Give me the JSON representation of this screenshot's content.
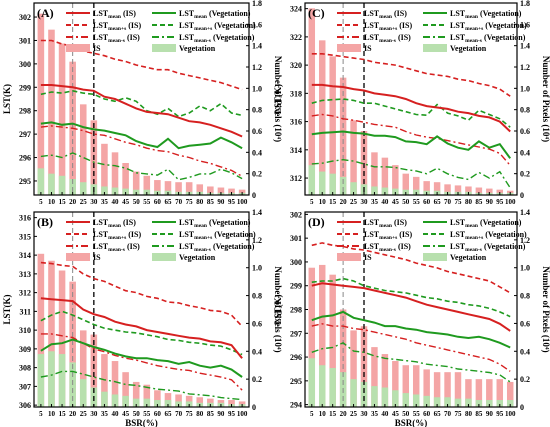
{
  "figure": {
    "colors": {
      "is_line": "#d62020",
      "veg_line": "#1f9a1f",
      "is_bar": "#f4a5a5",
      "veg_bar": "#b8e0ae",
      "ref_line": "#000000",
      "ref_line_light": "#888888"
    },
    "legend_labels": {
      "lst_mean_is": "LSTmean (IS)",
      "lst_mean_veg": "LSTmean (Vegetation)",
      "lst_plus_is": "LSTmean+s (IS)",
      "lst_plus_veg": "LSTmean+s (Vegetation)",
      "lst_minus_is": "LSTmean-s (IS)",
      "lst_minus_veg": "LSTmean-s (Vegetation)",
      "is": "IS",
      "veg": "Vegetation"
    },
    "legend_sub": {
      "base": "LST",
      "mean": "mean",
      "plus": "mean+s",
      "minus": "mean-s",
      "is_suffix": " (IS)",
      "veg_suffix": " (Vegetation)"
    }
  },
  "chart_data": [
    {
      "panel": "(A)",
      "type": "line+bar",
      "xlabel": "BSR(%)",
      "ylabel": "LST(K)",
      "y2label": "Number of Pixels (10⁴)",
      "x": [
        5,
        10,
        15,
        20,
        25,
        30,
        35,
        40,
        45,
        50,
        55,
        60,
        65,
        70,
        75,
        80,
        85,
        90,
        95,
        100
      ],
      "ylim": [
        294.4,
        302.6
      ],
      "yticks": [
        295,
        296,
        297,
        298,
        299,
        300,
        301,
        302
      ],
      "y2lim": [
        0,
        1.8
      ],
      "y2ticks": [
        0,
        0.2,
        0.4,
        0.6,
        0.8,
        1.0,
        1.2,
        1.4,
        1.6,
        1.8
      ],
      "vlines": [
        20,
        30
      ],
      "is_mean": [
        299.1,
        299.1,
        299.05,
        299.0,
        298.9,
        298.85,
        298.6,
        298.5,
        298.3,
        298.1,
        297.95,
        297.9,
        297.85,
        297.7,
        297.55,
        297.5,
        297.4,
        297.25,
        297.1,
        296.9
      ],
      "is_plus": [
        301.0,
        301.0,
        300.85,
        300.75,
        300.55,
        300.45,
        300.35,
        300.2,
        300.1,
        299.95,
        299.85,
        299.75,
        299.75,
        299.6,
        299.5,
        299.4,
        299.3,
        299.2,
        299.05,
        298.9
      ],
      "is_minus": [
        297.3,
        297.35,
        297.3,
        297.25,
        297.15,
        297.0,
        296.95,
        296.8,
        296.65,
        296.55,
        296.4,
        296.3,
        296.25,
        296.1,
        296.0,
        295.85,
        295.75,
        295.6,
        295.45,
        295.2
      ],
      "veg_mean": [
        297.45,
        297.5,
        297.4,
        297.45,
        297.3,
        297.2,
        297.15,
        297.05,
        296.95,
        296.7,
        296.55,
        296.45,
        296.8,
        296.4,
        296.5,
        296.55,
        296.6,
        296.85,
        296.65,
        296.4
      ],
      "veg_plus": [
        298.7,
        298.8,
        298.75,
        298.85,
        298.75,
        298.7,
        298.5,
        298.4,
        298.55,
        298.4,
        298.0,
        297.85,
        298.1,
        297.75,
        297.9,
        298.2,
        298.0,
        298.3,
        297.9,
        297.8
      ],
      "veg_minus": [
        296.05,
        296.1,
        296.0,
        296.2,
        296.0,
        295.8,
        295.7,
        295.65,
        295.55,
        295.35,
        295.3,
        295.25,
        295.5,
        295.05,
        295.15,
        295.3,
        295.3,
        295.5,
        295.35,
        295.1
      ],
      "is_count": [
        1.7,
        1.55,
        1.42,
        1.25,
        0.85,
        0.7,
        0.48,
        0.4,
        0.3,
        0.22,
        0.18,
        0.14,
        0.13,
        0.12,
        0.12,
        0.1,
        0.08,
        0.07,
        0.06,
        0.05
      ],
      "veg_count": [
        0.25,
        0.2,
        0.18,
        0.15,
        0.12,
        0.1,
        0.08,
        0.07,
        0.06,
        0.05,
        0.05,
        0.04,
        0.04,
        0.03,
        0.03,
        0.03,
        0.02,
        0.02,
        0.02,
        0.02
      ]
    },
    {
      "panel": "(B)",
      "type": "line+bar",
      "xlabel": "BSR(%)",
      "ylabel": "LST(K)",
      "y2label": "Number of Pixels (10⁴)",
      "x": [
        5,
        10,
        15,
        20,
        25,
        30,
        35,
        40,
        45,
        50,
        55,
        60,
        65,
        70,
        75,
        80,
        85,
        90,
        95,
        100
      ],
      "ylim": [
        305.9,
        316.3
      ],
      "yticks": [
        306,
        307,
        308,
        309,
        310,
        311,
        312,
        313,
        314,
        315,
        316
      ],
      "y2lim": [
        0,
        1.4
      ],
      "y2ticks": [
        0,
        0.2,
        0.4,
        0.6,
        0.8,
        1.0,
        1.2,
        1.4
      ],
      "vlines": [
        20,
        30
      ],
      "is_mean": [
        311.7,
        311.65,
        311.6,
        311.55,
        311.1,
        310.85,
        310.7,
        310.45,
        310.3,
        310.2,
        310.0,
        309.9,
        309.8,
        309.7,
        309.6,
        309.55,
        309.4,
        309.35,
        309.2,
        308.5
      ],
      "is_plus": [
        313.6,
        313.55,
        313.45,
        313.4,
        313.0,
        312.75,
        312.6,
        312.35,
        312.1,
        312.0,
        311.8,
        311.7,
        311.5,
        311.45,
        311.3,
        311.2,
        311.05,
        311.0,
        310.8,
        310.2
      ],
      "is_minus": [
        309.8,
        309.8,
        309.7,
        309.6,
        309.3,
        309.0,
        308.85,
        308.65,
        308.5,
        308.4,
        308.25,
        308.1,
        308.0,
        307.9,
        307.85,
        307.7,
        307.6,
        307.5,
        307.35,
        306.8
      ],
      "veg_mean": [
        308.9,
        309.25,
        309.3,
        309.5,
        309.3,
        309.1,
        308.95,
        308.75,
        308.6,
        308.5,
        308.5,
        308.4,
        308.35,
        308.2,
        308.3,
        308.1,
        308.0,
        308.1,
        307.9,
        307.5
      ],
      "veg_plus": [
        310.5,
        310.8,
        311.0,
        310.8,
        310.55,
        310.3,
        310.1,
        310.0,
        309.9,
        309.85,
        309.75,
        309.65,
        309.5,
        309.45,
        309.35,
        309.3,
        309.2,
        309.15,
        308.95,
        308.7
      ],
      "veg_minus": [
        307.5,
        307.6,
        307.8,
        307.8,
        307.65,
        307.5,
        307.35,
        307.25,
        307.1,
        307.05,
        306.95,
        306.85,
        306.8,
        306.75,
        306.6,
        306.55,
        306.5,
        306.4,
        306.35,
        306.3
      ],
      "is_count": [
        1.1,
        1.05,
        0.98,
        0.9,
        0.55,
        0.52,
        0.38,
        0.33,
        0.25,
        0.18,
        0.16,
        0.12,
        0.1,
        0.09,
        0.08,
        0.07,
        0.06,
        0.05,
        0.05,
        0.04
      ],
      "veg_count": [
        0.38,
        0.4,
        0.38,
        0.32,
        0.2,
        0.14,
        0.11,
        0.09,
        0.08,
        0.06,
        0.06,
        0.05,
        0.05,
        0.04,
        0.04,
        0.03,
        0.03,
        0.03,
        0.02,
        0.02
      ]
    },
    {
      "panel": "(C)",
      "type": "line+bar",
      "xlabel": "BSR(%)",
      "ylabel": "LST(K)",
      "y2label": "Number of Pixels (10⁴)",
      "x": [
        5,
        10,
        15,
        20,
        25,
        30,
        35,
        40,
        45,
        50,
        55,
        60,
        65,
        70,
        75,
        80,
        85,
        90,
        95,
        100
      ],
      "ylim": [
        310.8,
        324.4
      ],
      "yticks": [
        312,
        314,
        316,
        318,
        320,
        322,
        324
      ],
      "y2lim": [
        0,
        1.8
      ],
      "y2ticks": [
        0,
        0.2,
        0.4,
        0.6,
        0.8,
        1.0,
        1.2,
        1.4,
        1.6,
        1.8
      ],
      "vlines": [
        20,
        30
      ],
      "is_mean": [
        318.6,
        318.6,
        318.5,
        318.45,
        318.3,
        318.2,
        318.0,
        317.9,
        317.8,
        317.6,
        317.3,
        317.1,
        317.0,
        316.9,
        316.7,
        316.6,
        316.4,
        316.3,
        316.0,
        315.3
      ],
      "is_plus": [
        320.8,
        320.8,
        320.7,
        320.6,
        320.5,
        320.4,
        320.2,
        320.1,
        320.0,
        319.8,
        319.6,
        319.4,
        319.3,
        319.2,
        319.0,
        318.9,
        318.7,
        318.55,
        318.3,
        317.8
      ],
      "is_minus": [
        316.4,
        316.5,
        316.4,
        316.2,
        316.1,
        315.95,
        315.8,
        315.7,
        315.6,
        315.3,
        315.05,
        314.9,
        314.8,
        314.65,
        314.5,
        314.35,
        314.2,
        314.05,
        313.75,
        312.9
      ],
      "veg_mean": [
        315.1,
        315.2,
        315.25,
        315.3,
        315.2,
        315.15,
        315.0,
        315.0,
        314.9,
        314.6,
        314.55,
        314.4,
        314.95,
        314.45,
        314.15,
        314.0,
        314.6,
        314.15,
        314.4,
        313.4
      ],
      "veg_plus": [
        317.3,
        317.5,
        317.55,
        317.6,
        317.5,
        317.3,
        317.3,
        317.1,
        316.9,
        316.7,
        316.5,
        316.45,
        317.2,
        316.6,
        316.4,
        316.1,
        316.8,
        316.5,
        316.2,
        315.6
      ],
      "veg_minus": [
        313.0,
        313.05,
        313.2,
        313.3,
        313.2,
        313.0,
        312.8,
        312.8,
        312.75,
        312.6,
        312.5,
        312.3,
        312.7,
        312.3,
        312.05,
        311.9,
        312.4,
        312.0,
        312.45,
        311.3
      ],
      "is_count": [
        1.75,
        1.45,
        1.3,
        1.1,
        0.7,
        0.6,
        0.4,
        0.35,
        0.28,
        0.2,
        0.17,
        0.13,
        0.12,
        0.1,
        0.09,
        0.08,
        0.07,
        0.06,
        0.05,
        0.04
      ],
      "veg_count": [
        0.28,
        0.22,
        0.2,
        0.17,
        0.12,
        0.1,
        0.08,
        0.07,
        0.06,
        0.05,
        0.05,
        0.04,
        0.04,
        0.03,
        0.03,
        0.03,
        0.02,
        0.02,
        0.02,
        0.02
      ]
    },
    {
      "panel": "(D)",
      "type": "line+bar",
      "xlabel": "BSR(%)",
      "ylabel": "LST(K)",
      "y2label": "Number of Pixels (10⁴)",
      "x": [
        5,
        10,
        15,
        20,
        25,
        30,
        35,
        40,
        45,
        50,
        55,
        60,
        65,
        70,
        75,
        80,
        85,
        90,
        95,
        100
      ],
      "ylim": [
        293.9,
        302.1
      ],
      "yticks": [
        294,
        295,
        296,
        297,
        298,
        299,
        300,
        301,
        302
      ],
      "y2lim": [
        0,
        1.4
      ],
      "y2ticks": [
        0,
        0.2,
        0.4,
        0.6,
        0.8,
        1.0,
        1.2,
        1.4
      ],
      "vlines": [
        20,
        30
      ],
      "is_mean": [
        299.0,
        299.1,
        299.05,
        299.0,
        298.95,
        298.9,
        298.8,
        298.7,
        298.6,
        298.5,
        298.35,
        298.2,
        298.1,
        298.0,
        297.9,
        297.8,
        297.7,
        297.6,
        297.4,
        297.1
      ],
      "is_plus": [
        300.7,
        300.8,
        300.7,
        300.65,
        300.55,
        300.5,
        300.4,
        300.3,
        300.2,
        300.1,
        299.95,
        299.85,
        299.75,
        299.6,
        299.5,
        299.4,
        299.3,
        299.2,
        298.95,
        298.7
      ],
      "is_minus": [
        297.3,
        297.4,
        297.3,
        297.3,
        297.2,
        297.15,
        297.05,
        296.95,
        296.85,
        296.75,
        296.6,
        296.5,
        296.4,
        296.3,
        296.2,
        296.1,
        296.0,
        295.9,
        295.7,
        295.4
      ],
      "veg_mean": [
        297.55,
        297.7,
        297.75,
        297.9,
        297.65,
        297.55,
        297.45,
        297.3,
        297.3,
        297.2,
        297.15,
        297.05,
        297.0,
        296.95,
        296.85,
        296.8,
        296.85,
        296.75,
        296.6,
        296.4
      ],
      "veg_plus": [
        299.15,
        299.2,
        299.2,
        299.3,
        299.2,
        299.0,
        298.9,
        298.8,
        298.75,
        298.7,
        298.6,
        298.5,
        298.45,
        298.35,
        298.3,
        298.2,
        298.15,
        298.05,
        297.9,
        297.7
      ],
      "veg_minus": [
        296.2,
        296.35,
        296.4,
        296.6,
        296.25,
        296.2,
        296.05,
        295.95,
        295.9,
        295.85,
        295.8,
        295.7,
        295.65,
        295.6,
        295.5,
        295.45,
        295.4,
        295.35,
        295.25,
        294.95
      ],
      "is_count": [
        1.0,
        1.02,
        0.95,
        0.7,
        0.55,
        0.58,
        0.43,
        0.38,
        0.33,
        0.3,
        0.3,
        0.27,
        0.25,
        0.25,
        0.25,
        0.2,
        0.2,
        0.2,
        0.2,
        0.18
      ],
      "veg_count": [
        0.35,
        0.3,
        0.28,
        0.25,
        0.2,
        0.18,
        0.15,
        0.14,
        0.12,
        0.1,
        0.09,
        0.08,
        0.07,
        0.07,
        0.06,
        0.06,
        0.05,
        0.05,
        0.05,
        0.05
      ]
    }
  ]
}
